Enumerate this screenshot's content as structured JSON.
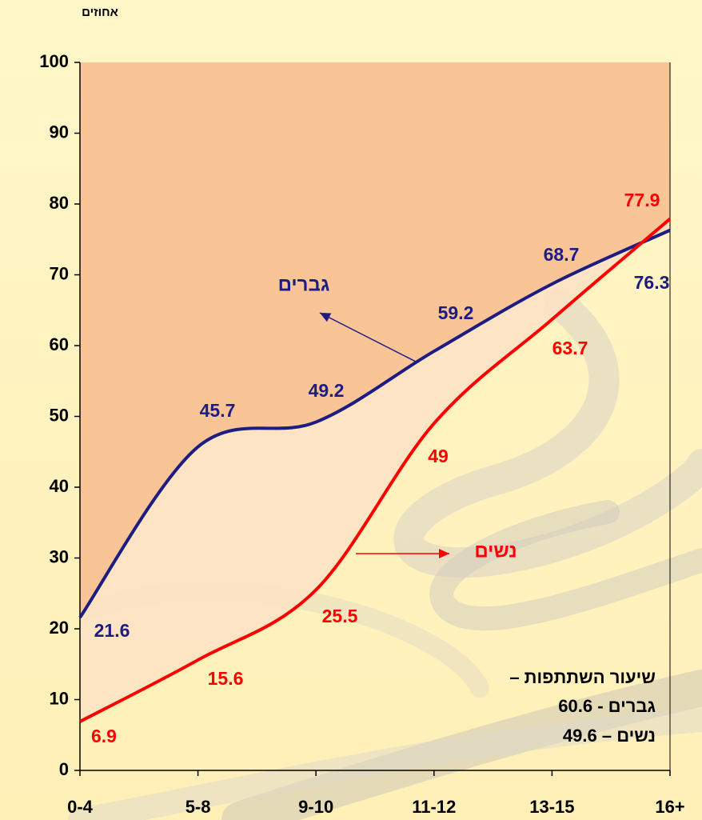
{
  "chart_data": {
    "type": "line",
    "y_axis_label": "אחוזים",
    "categories": [
      "0-4",
      "5-8",
      "9-10",
      "11-12",
      "13-15",
      "16+"
    ],
    "series": [
      {
        "name": "גברים",
        "color": "#1c1c82",
        "values": [
          21.6,
          45.7,
          49.2,
          59.2,
          68.7,
          76.3
        ]
      },
      {
        "name": "נשים",
        "color": "#ff0000",
        "values": [
          6.9,
          15.6,
          25.5,
          49,
          63.7,
          77.9
        ]
      }
    ],
    "ylim": [
      0,
      100
    ],
    "yticks": [
      0,
      10,
      20,
      30,
      40,
      50,
      60,
      70,
      80,
      90,
      100
    ],
    "annotations": [
      "שיעור השתתפות –",
      "גברים - 60.6",
      "נשים – 49.6"
    ]
  }
}
